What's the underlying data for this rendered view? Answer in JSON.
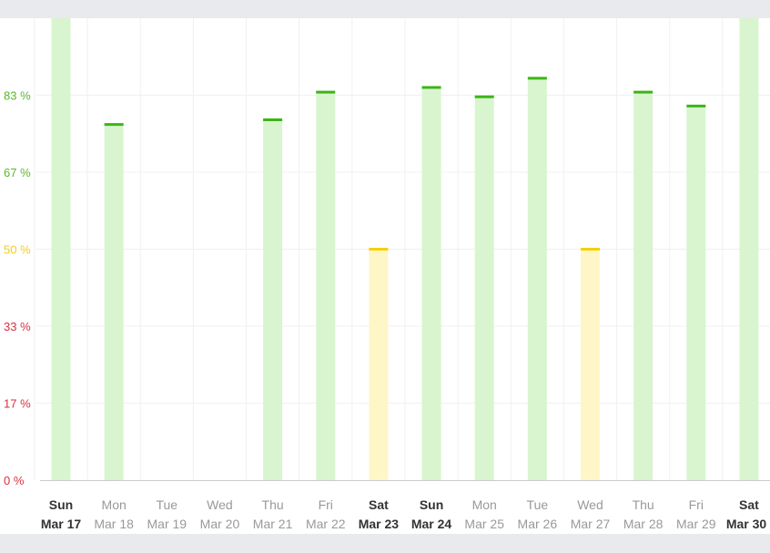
{
  "chart_data": {
    "type": "bar",
    "ylim": [
      0,
      100
    ],
    "y_ticks": [
      {
        "label": "83 %",
        "value": 83.33,
        "color": "#5ab82e"
      },
      {
        "label": "67 %",
        "value": 66.67,
        "color": "#5ab82e"
      },
      {
        "label": "50 %",
        "value": 50,
        "color": "#f2cd1a"
      },
      {
        "label": "33 %",
        "value": 33.33,
        "color": "#d9303f"
      },
      {
        "label": "17 %",
        "value": 16.67,
        "color": "#d9303f"
      },
      {
        "label": "0 %",
        "value": 0,
        "color": "#d9303f"
      }
    ],
    "categories": [
      {
        "day": "Sun",
        "date": "Mar 17",
        "value": 100,
        "bold": true
      },
      {
        "day": "Mon",
        "date": "Mar 18",
        "value": 77,
        "bold": false
      },
      {
        "day": "Tue",
        "date": "Mar 19",
        "value": null,
        "bold": false
      },
      {
        "day": "Wed",
        "date": "Mar 20",
        "value": null,
        "bold": false
      },
      {
        "day": "Thu",
        "date": "Mar 21",
        "value": 78,
        "bold": false
      },
      {
        "day": "Fri",
        "date": "Mar 22",
        "value": 84,
        "bold": false
      },
      {
        "day": "Sat",
        "date": "Mar 23",
        "value": 50,
        "bold": true
      },
      {
        "day": "Sun",
        "date": "Mar 24",
        "value": 85,
        "bold": true
      },
      {
        "day": "Mon",
        "date": "Mar 25",
        "value": 83,
        "bold": false
      },
      {
        "day": "Tue",
        "date": "Mar 26",
        "value": 87,
        "bold": false
      },
      {
        "day": "Wed",
        "date": "Mar 27",
        "value": 50,
        "bold": false
      },
      {
        "day": "Thu",
        "date": "Mar 28",
        "value": 84,
        "bold": false
      },
      {
        "day": "Fri",
        "date": "Mar 29",
        "value": 81,
        "bold": false
      },
      {
        "day": "Sat",
        "date": "Mar 30",
        "value": 100,
        "bold": true
      }
    ],
    "colors": {
      "good_fill": "#d8f5cf",
      "good_line": "#3cb517",
      "mid_fill": "#fff6c8",
      "mid_line": "#f5d000",
      "gridline": "#f0f0f0",
      "axis": "#cccccc"
    },
    "grid": true,
    "legend": "none"
  }
}
